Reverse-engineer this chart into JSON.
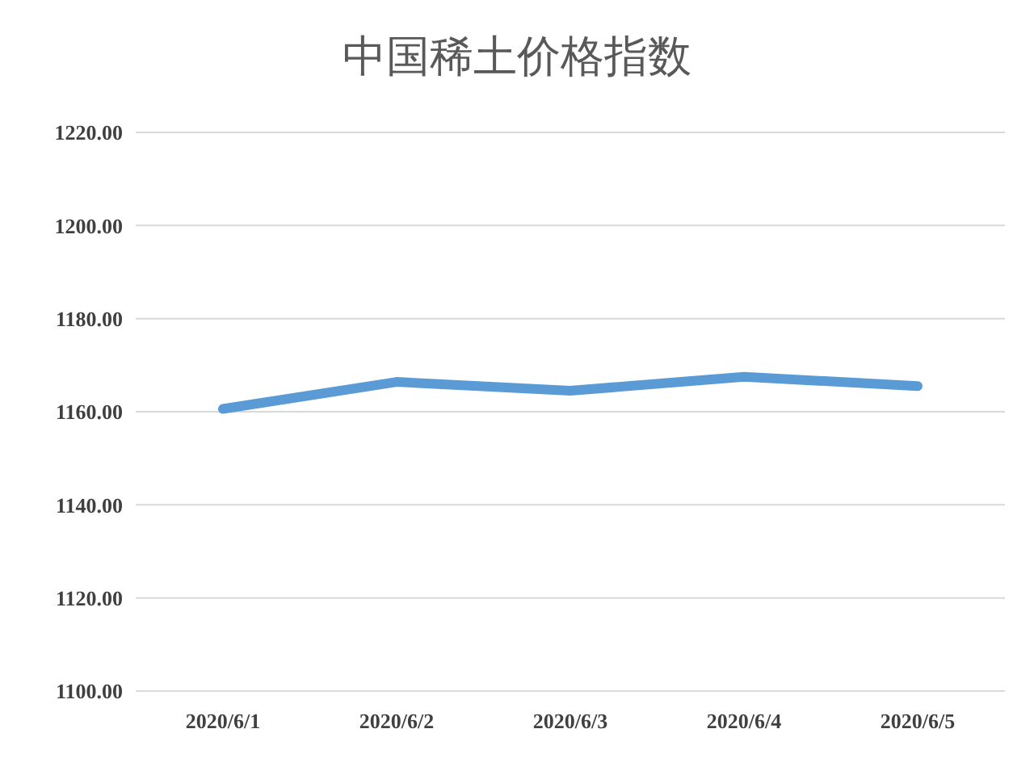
{
  "chart_data": {
    "type": "line",
    "title": "中国稀土价格指数",
    "categories": [
      "2020/6/1",
      "2020/6/2",
      "2020/6/3",
      "2020/6/4",
      "2020/6/5"
    ],
    "series": [
      {
        "color": "#5b9bd5",
        "values": [
          1160.6,
          1166.4,
          1164.5,
          1167.5,
          1165.5
        ]
      }
    ],
    "ylim": [
      1100,
      1220
    ],
    "yticks": [
      {
        "value": 1100,
        "label": "1100.00"
      },
      {
        "value": 1120,
        "label": "1120.00"
      },
      {
        "value": 1140,
        "label": "1140.00"
      },
      {
        "value": 1160,
        "label": "1160.00"
      },
      {
        "value": 1180,
        "label": "1180.00"
      },
      {
        "value": 1200,
        "label": "1200.00"
      },
      {
        "value": 1220,
        "label": "1220.00"
      }
    ],
    "grid": "y",
    "marker": "none",
    "line_style": "solid",
    "legend": false
  }
}
